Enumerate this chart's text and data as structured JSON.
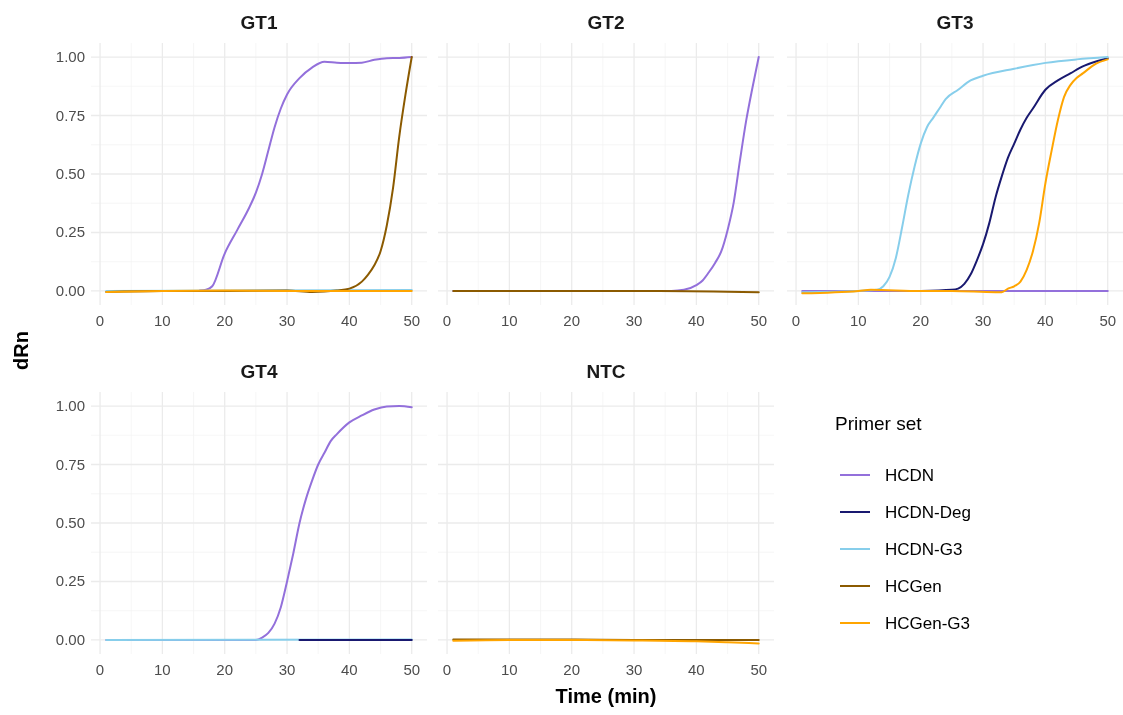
{
  "chart_data": [
    {
      "type": "line",
      "title": "GT1",
      "ylabel": "dRn",
      "legend": "right",
      "legend_title": "Primer set",
      "xlim": [
        -1.45,
        52.45
      ],
      "ylim": [
        -0.06,
        1.06
      ],
      "xticks": [
        0,
        10,
        20,
        30,
        40,
        50
      ],
      "yticks": [
        {
          "value": 0,
          "label": "0.00"
        },
        {
          "value": 0.25,
          "label": "0.25"
        },
        {
          "value": 0.5,
          "label": "0.50"
        },
        {
          "value": 0.75,
          "label": "0.75"
        },
        {
          "value": 1,
          "label": "1.00"
        }
      ],
      "grid": true,
      "series": [
        {
          "name": "HCDN",
          "color": "#9370db",
          "x": [
            16,
            17,
            18,
            20,
            22,
            24,
            25,
            26,
            27,
            28,
            29,
            30,
            32,
            34,
            36,
            38,
            40,
            42,
            44,
            46,
            48,
            50
          ],
          "values": [
            0.002,
            0.005,
            0.02,
            0.16,
            0.26,
            0.36,
            0.42,
            0.5,
            0.6,
            0.7,
            0.78,
            0.84,
            0.91,
            0.955,
            0.98,
            0.976,
            0.974,
            0.976,
            0.988,
            0.995,
            0.996,
            1.0
          ]
        },
        {
          "name": "HCDN-G3",
          "color": "#87ceeb",
          "x": [
            1,
            50
          ],
          "values": [
            0,
            0.004
          ]
        },
        {
          "name": "HCGen",
          "color": "#8b5a00",
          "x": [
            1,
            10,
            20,
            30,
            34,
            38,
            40,
            42,
            43,
            44,
            45,
            46,
            47,
            48,
            49,
            50
          ],
          "values": [
            -0.004,
            0,
            0,
            0.002,
            -0.004,
            0.002,
            0.01,
            0.04,
            0.07,
            0.11,
            0.17,
            0.28,
            0.44,
            0.66,
            0.84,
            1.0
          ]
        },
        {
          "name": "HCGen-G3",
          "color": "#ffa500",
          "x": [
            1,
            10,
            20,
            30,
            40,
            50
          ],
          "values": [
            -0.004,
            0,
            0.002,
            0,
            0,
            0
          ]
        }
      ]
    },
    {
      "type": "line",
      "title": "GT2",
      "xlim": [
        -1.45,
        52.45
      ],
      "ylim": [
        -0.06,
        1.06
      ],
      "xticks": [
        0,
        10,
        20,
        30,
        40,
        50
      ],
      "yticks": [
        0,
        0.25,
        0.5,
        0.75,
        1
      ],
      "grid": true,
      "tick_labels": "x",
      "series": [
        {
          "name": "HCDN",
          "color": "#9370db",
          "x": [
            1,
            36,
            38,
            40,
            41,
            42,
            43,
            44,
            45,
            46,
            47,
            48,
            49,
            50
          ],
          "values": [
            0,
            0,
            0.005,
            0.025,
            0.045,
            0.08,
            0.12,
            0.17,
            0.26,
            0.38,
            0.56,
            0.73,
            0.87,
            1.0
          ]
        },
        {
          "name": "HCGen",
          "color": "#8b5a00",
          "x": [
            1,
            34,
            50
          ],
          "values": [
            0,
            0,
            -0.005
          ]
        }
      ]
    },
    {
      "type": "line",
      "title": "GT3",
      "xlim": [
        -1.45,
        52.45
      ],
      "ylim": [
        -0.06,
        1.06
      ],
      "xticks": [
        0,
        10,
        20,
        30,
        40,
        50
      ],
      "yticks": [
        0,
        0.25,
        0.5,
        0.75,
        1
      ],
      "grid": true,
      "tick_labels": "x",
      "series": [
        {
          "name": "HCDN",
          "color": "#9370db",
          "x": [
            1,
            50
          ],
          "values": [
            0,
            0
          ]
        },
        {
          "name": "HCDN-Deg",
          "color": "#191970",
          "x": [
            20,
            25,
            26,
            27,
            28,
            29,
            30,
            31,
            32,
            33,
            34,
            35,
            36,
            37,
            38,
            40,
            42,
            44,
            46,
            48,
            50
          ],
          "values": [
            0,
            0.005,
            0.01,
            0.03,
            0.07,
            0.13,
            0.2,
            0.29,
            0.4,
            0.49,
            0.57,
            0.63,
            0.69,
            0.74,
            0.78,
            0.86,
            0.9,
            0.93,
            0.96,
            0.98,
            0.995
          ]
        },
        {
          "name": "HCDN-G3",
          "color": "#87ceeb",
          "x": [
            1,
            10,
            13,
            14,
            15,
            16,
            17,
            18,
            19,
            20,
            21,
            22,
            23,
            24,
            26,
            28,
            30,
            35,
            40,
            45,
            50
          ],
          "values": [
            -0.005,
            0,
            0.005,
            0.02,
            0.06,
            0.14,
            0.27,
            0.41,
            0.53,
            0.63,
            0.7,
            0.74,
            0.78,
            0.82,
            0.86,
            0.9,
            0.92,
            0.95,
            0.975,
            0.99,
            1.0
          ]
        },
        {
          "name": "HCGen-G3",
          "color": "#ffa500",
          "x": [
            1,
            10,
            12,
            20,
            25,
            32,
            33,
            34,
            35,
            36,
            37,
            38,
            39,
            40,
            41,
            42,
            43,
            44,
            45,
            46,
            48,
            50
          ],
          "values": [
            -0.01,
            0,
            0.005,
            0,
            0,
            -0.005,
            -0.005,
            0.01,
            0.02,
            0.04,
            0.09,
            0.17,
            0.29,
            0.46,
            0.6,
            0.73,
            0.83,
            0.88,
            0.91,
            0.93,
            0.97,
            0.99
          ]
        }
      ]
    },
    {
      "type": "line",
      "title": "GT4",
      "xlim": [
        -1.45,
        52.45
      ],
      "ylim": [
        -0.06,
        1.06
      ],
      "xticks": [
        0,
        10,
        20,
        30,
        40,
        50
      ],
      "yticks": [
        {
          "value": 0,
          "label": "0.00"
        },
        {
          "value": 0.25,
          "label": "0.25"
        },
        {
          "value": 0.5,
          "label": "0.50"
        },
        {
          "value": 0.75,
          "label": "0.75"
        },
        {
          "value": 1,
          "label": "1.00"
        }
      ],
      "grid": true,
      "series": [
        {
          "name": "HCDN",
          "color": "#9370db",
          "x": [
            1,
            25,
            26,
            27,
            28,
            29,
            30,
            31,
            32,
            33,
            34,
            35,
            36,
            37,
            38,
            40,
            42,
            44,
            46,
            48,
            50
          ],
          "values": [
            0,
            0,
            0.01,
            0.03,
            0.07,
            0.14,
            0.25,
            0.37,
            0.5,
            0.6,
            0.68,
            0.75,
            0.8,
            0.85,
            0.88,
            0.93,
            0.96,
            0.985,
            0.998,
            1.0,
            0.995
          ]
        },
        {
          "name": "HCDN-G3",
          "color": "#87ceeb",
          "x": [
            1,
            50
          ],
          "values": [
            0,
            0.002
          ]
        },
        {
          "name": "HCDN-Deg",
          "color": "#191970",
          "x": [
            32,
            50
          ],
          "values": [
            0,
            0
          ]
        }
      ]
    },
    {
      "type": "line",
      "title": "NTC",
      "xlabel": "Time (min)",
      "xlim": [
        -1.45,
        52.45
      ],
      "ylim": [
        -0.06,
        1.06
      ],
      "xticks": [
        0,
        10,
        20,
        30,
        40,
        50
      ],
      "yticks": [
        0,
        0.25,
        0.5,
        0.75,
        1
      ],
      "grid": true,
      "tick_labels": "x",
      "series": [
        {
          "name": "HCGen",
          "color": "#8b5a00",
          "x": [
            1,
            20,
            30,
            40,
            50
          ],
          "values": [
            0.002,
            0.002,
            0,
            0,
            0
          ]
        },
        {
          "name": "HCGen-G3",
          "color": "#ffa500",
          "x": [
            1,
            10,
            20,
            30,
            40,
            45,
            50
          ],
          "values": [
            -0.003,
            0,
            0,
            -0.002,
            -0.006,
            -0.01,
            -0.015
          ]
        }
      ]
    }
  ]
}
